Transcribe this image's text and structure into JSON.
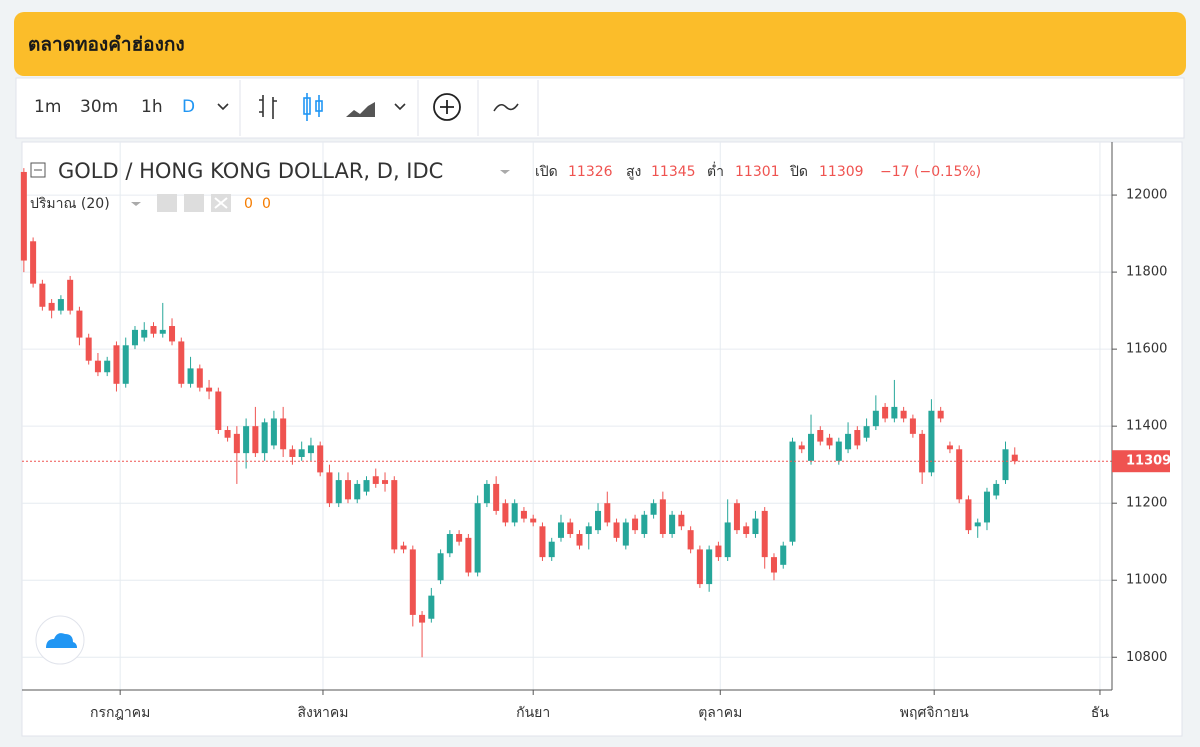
{
  "header": {
    "title": "ตลาดทองคำฮ่องกง"
  },
  "toolbar": {
    "intervals": [
      "1m",
      "30m",
      "1h",
      "D"
    ]
  },
  "chart_data": {
    "type": "candlestick",
    "title": "GOLD / HONG KONG DOLLAR, D, IDC",
    "ohlc_labels": {
      "open": "เปิด",
      "high": "สูง",
      "low": "ต่ำ",
      "close": "ปิด"
    },
    "change_label": "−17 (−0.15%)",
    "volume_label": "ปริมาณ (20)",
    "volume_values": [
      0,
      0
    ],
    "up_color": "#26a69a",
    "down_color": "#ef5350",
    "open": [
      12060,
      11880,
      11770,
      11720,
      11700,
      11780,
      11700,
      11630,
      11570,
      11540,
      11610,
      11510,
      11610,
      11630,
      11660,
      11640,
      11660,
      11620,
      11510,
      11550,
      11500,
      11490,
      11390,
      11380,
      11330,
      11400,
      11330,
      11350,
      11420,
      11340,
      11320,
      11330,
      11350,
      11280,
      11200,
      11260,
      11210,
      11230,
      11270,
      11260,
      11260,
      11090,
      11080,
      10910,
      10900,
      11000,
      11070,
      11120,
      11110,
      11020,
      11200,
      11250,
      11200,
      11150,
      11180,
      11160,
      11140,
      11060,
      11110,
      11150,
      11120,
      11120,
      11130,
      11200,
      11150,
      11090,
      11160,
      11120,
      11170,
      11210,
      11120,
      11170,
      11130,
      11080,
      10990,
      11090,
      11060,
      11200,
      11140,
      11120,
      11180,
      11060,
      11040,
      11100,
      11350,
      11310,
      11390,
      11370,
      11310,
      11340,
      11390,
      11370,
      11400,
      11450,
      11420,
      11440,
      11420,
      11380,
      11280,
      11440,
      11350,
      11340,
      11210,
      11140,
      11150,
      11220,
      11260,
      11326
    ],
    "high": [
      12070,
      11890,
      11780,
      11730,
      11740,
      11790,
      11710,
      11640,
      11590,
      11580,
      11620,
      11630,
      11660,
      11670,
      11670,
      11720,
      11680,
      11630,
      11580,
      11560,
      11520,
      11500,
      11400,
      11400,
      11420,
      11450,
      11420,
      11440,
      11450,
      11350,
      11360,
      11370,
      11360,
      11300,
      11280,
      11280,
      11260,
      11270,
      11290,
      11280,
      11270,
      11100,
      11090,
      10920,
      10980,
      11080,
      11130,
      11130,
      11120,
      11220,
      11260,
      11270,
      11210,
      11210,
      11190,
      11170,
      11150,
      11110,
      11170,
      11160,
      11130,
      11150,
      11200,
      11230,
      11160,
      11160,
      11170,
      11180,
      11210,
      11230,
      11180,
      11180,
      11140,
      11090,
      11090,
      11100,
      11210,
      11210,
      11150,
      11180,
      11190,
      11070,
      11100,
      11370,
      11360,
      11430,
      11400,
      11380,
      11370,
      11410,
      11400,
      11420,
      11480,
      11460,
      11520,
      11450,
      11430,
      11390,
      11470,
      11450,
      11360,
      11350,
      11220,
      11160,
      11240,
      11260,
      11360,
      11345
    ],
    "low": [
      11800,
      11760,
      11700,
      11680,
      11690,
      11690,
      11610,
      11560,
      11530,
      11530,
      11490,
      11500,
      11600,
      11620,
      11630,
      11630,
      11610,
      11500,
      11500,
      11490,
      11470,
      11380,
      11360,
      11250,
      11290,
      11320,
      11310,
      11340,
      11320,
      11300,
      11310,
      11310,
      11270,
      11190,
      11190,
      11200,
      11200,
      11220,
      11240,
      11230,
      11070,
      11070,
      10880,
      10800,
      10890,
      10990,
      11060,
      11090,
      11010,
      11010,
      11190,
      11170,
      11140,
      11140,
      11150,
      11140,
      11050,
      11050,
      11100,
      11110,
      11080,
      11080,
      11120,
      11140,
      11100,
      11080,
      11120,
      11110,
      11160,
      11110,
      11110,
      11130,
      11070,
      10980,
      10970,
      11050,
      11050,
      11120,
      11110,
      11110,
      11030,
      11000,
      11030,
      11090,
      11330,
      11300,
      11350,
      11340,
      11300,
      11330,
      11340,
      11360,
      11390,
      11410,
      11410,
      11410,
      11370,
      11250,
      11270,
      11410,
      11330,
      11200,
      11120,
      11110,
      11130,
      11210,
      11250,
      11301
    ],
    "close": [
      11830,
      11770,
      11710,
      11700,
      11730,
      11700,
      11630,
      11570,
      11540,
      11570,
      11510,
      11610,
      11650,
      11650,
      11640,
      11650,
      11620,
      11510,
      11550,
      11500,
      11490,
      11390,
      11370,
      11330,
      11400,
      11330,
      11410,
      11420,
      11340,
      11320,
      11340,
      11350,
      11280,
      11200,
      11260,
      11210,
      11250,
      11260,
      11250,
      11250,
      11080,
      11080,
      10910,
      10890,
      10960,
      11070,
      11120,
      11100,
      11020,
      11200,
      11250,
      11180,
      11150,
      11200,
      11160,
      11150,
      11060,
      11100,
      11150,
      11120,
      11090,
      11140,
      11180,
      11150,
      11110,
      11150,
      11130,
      11170,
      11200,
      11120,
      11170,
      11140,
      11080,
      10990,
      11080,
      11060,
      11150,
      11130,
      11120,
      11160,
      11060,
      11020,
      11090,
      11360,
      11340,
      11380,
      11360,
      11350,
      11360,
      11380,
      11350,
      11400,
      11440,
      11420,
      11450,
      11420,
      11380,
      11280,
      11440,
      11420,
      11340,
      11210,
      11130,
      11150,
      11230,
      11250,
      11340,
      11309
    ],
    "xlim": [
      -0.2,
      117.5
    ],
    "xticks": [
      {
        "value": 10.4,
        "label": "กรกฎาคม"
      },
      {
        "value": 32.3,
        "label": "สิงหาคม"
      },
      {
        "value": 55,
        "label": "กันยา"
      },
      {
        "value": 75.2,
        "label": "ตุลาคม"
      },
      {
        "value": 98.3,
        "label": "พฤศจิกายน"
      },
      {
        "value": 116.2,
        "label": "ธัน"
      }
    ],
    "ylim": [
      10715,
      12130
    ],
    "yticks": [
      10800,
      11000,
      11200,
      11400,
      11600,
      11800,
      12000
    ],
    "grid": true
  }
}
